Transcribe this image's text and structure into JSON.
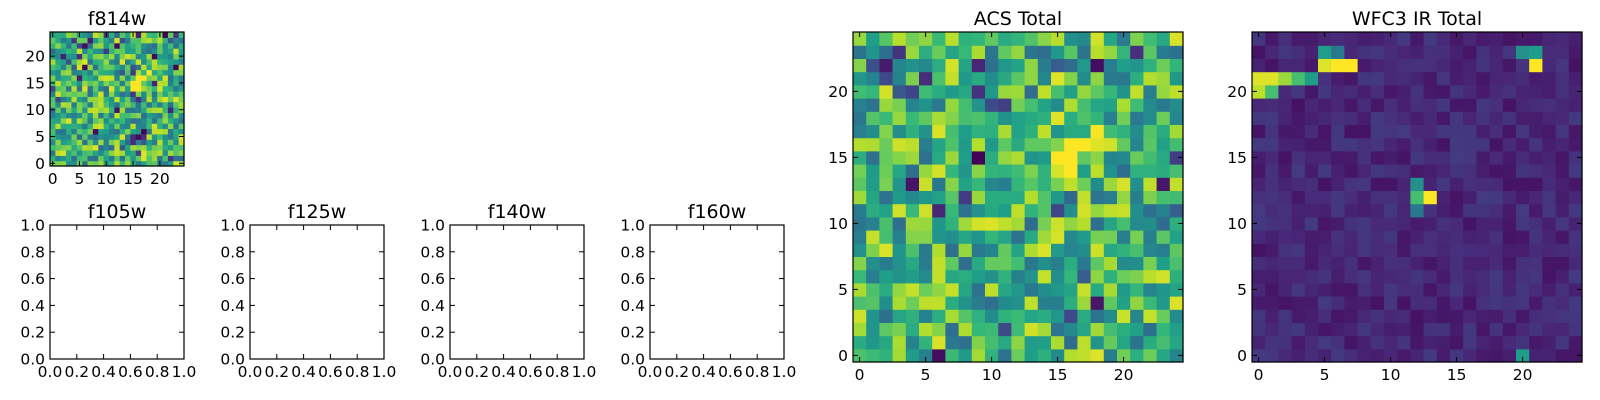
{
  "chart_data": [
    {
      "id": "f814w",
      "type": "heatmap",
      "title": "f814w",
      "xticks": [
        0,
        5,
        10,
        15,
        20
      ],
      "yticks": [
        0,
        5,
        10,
        15,
        20
      ],
      "xlim": [
        -0.5,
        24.5
      ],
      "ylim": [
        -0.5,
        24.5
      ],
      "colormap": "viridis",
      "hotspots": [
        {
          "x": 16,
          "y": 15,
          "level": 1.0
        }
      ],
      "noise_level": 0.7
    },
    {
      "id": "f105w",
      "type": "empty",
      "title": "f105w",
      "xticks": [
        "0.0",
        "0.2",
        "0.4",
        "0.6",
        "0.8",
        "1.0"
      ],
      "yticks": [
        "0.0",
        "0.2",
        "0.4",
        "0.6",
        "0.8",
        "1.0"
      ],
      "xlim": [
        0,
        1
      ],
      "ylim": [
        0,
        1
      ]
    },
    {
      "id": "f125w",
      "type": "empty",
      "title": "f125w",
      "xticks": [
        "0.0",
        "0.2",
        "0.4",
        "0.6",
        "0.8",
        "1.0"
      ],
      "yticks": [
        "0.0",
        "0.2",
        "0.4",
        "0.6",
        "0.8",
        "1.0"
      ],
      "xlim": [
        0,
        1
      ],
      "ylim": [
        0,
        1
      ]
    },
    {
      "id": "f140w",
      "type": "empty",
      "title": "f140w",
      "xticks": [
        "0.0",
        "0.2",
        "0.4",
        "0.6",
        "0.8",
        "1.0"
      ],
      "yticks": [
        "0.0",
        "0.2",
        "0.4",
        "0.6",
        "0.8",
        "1.0"
      ],
      "xlim": [
        0,
        1
      ],
      "ylim": [
        0,
        1
      ]
    },
    {
      "id": "f160w",
      "type": "empty",
      "title": "f160w",
      "xticks": [
        "0.0",
        "0.2",
        "0.4",
        "0.6",
        "0.8",
        "1.0"
      ],
      "yticks": [
        "0.0",
        "0.2",
        "0.4",
        "0.6",
        "0.8",
        "1.0"
      ],
      "xlim": [
        0,
        1
      ],
      "ylim": [
        0,
        1
      ]
    },
    {
      "id": "acs-total",
      "type": "heatmap",
      "title": "ACS Total",
      "xticks": [
        0,
        5,
        10,
        15,
        20
      ],
      "yticks": [
        0,
        5,
        10,
        15,
        20
      ],
      "xlim": [
        -0.5,
        24.5
      ],
      "ylim": [
        -0.5,
        24.5
      ],
      "colormap": "viridis",
      "hotspots": [
        {
          "x": 16,
          "y": 15,
          "level": 1.0
        }
      ],
      "noise_level": 0.7
    },
    {
      "id": "wfc3-ir-total",
      "type": "heatmap",
      "title": "WFC3 IR Total",
      "xticks": [
        0,
        5,
        10,
        15,
        20
      ],
      "yticks": [
        0,
        5,
        10,
        15,
        20
      ],
      "xlim": [
        -0.5,
        24.5
      ],
      "ylim": [
        -0.5,
        24.5
      ],
      "colormap": "viridis",
      "hotspots": [
        {
          "x": 0,
          "y": 21,
          "level": 0.95
        },
        {
          "x": 1,
          "y": 21,
          "level": 0.95
        },
        {
          "x": 2,
          "y": 21,
          "level": 0.85
        },
        {
          "x": 0,
          "y": 20,
          "level": 0.9
        },
        {
          "x": 1,
          "y": 20,
          "level": 0.7
        },
        {
          "x": 3,
          "y": 21,
          "level": 0.7
        },
        {
          "x": 4,
          "y": 21,
          "level": 0.55
        },
        {
          "x": 5,
          "y": 22,
          "level": 0.95
        },
        {
          "x": 6,
          "y": 22,
          "level": 1.0
        },
        {
          "x": 7,
          "y": 22,
          "level": 1.0
        },
        {
          "x": 5,
          "y": 23,
          "level": 0.55
        },
        {
          "x": 6,
          "y": 23,
          "level": 0.4
        },
        {
          "x": 21,
          "y": 22,
          "level": 1.0
        },
        {
          "x": 20,
          "y": 23,
          "level": 0.5
        },
        {
          "x": 21,
          "y": 23,
          "level": 0.55
        },
        {
          "x": 12,
          "y": 12,
          "level": 0.7
        },
        {
          "x": 13,
          "y": 12,
          "level": 1.0
        },
        {
          "x": 12,
          "y": 13,
          "level": 0.5
        },
        {
          "x": 12,
          "y": 11,
          "level": 0.4
        },
        {
          "x": 20,
          "y": 0,
          "level": 0.55
        }
      ],
      "noise_level": 0.12
    }
  ]
}
